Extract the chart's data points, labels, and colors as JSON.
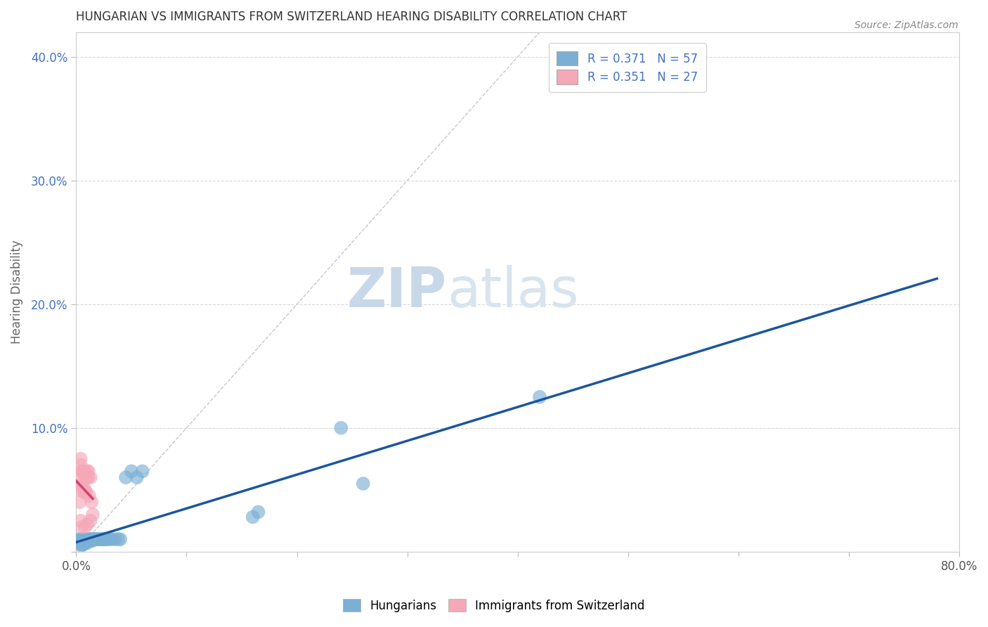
{
  "title": "HUNGARIAN VS IMMIGRANTS FROM SWITZERLAND HEARING DISABILITY CORRELATION CHART",
  "source": "Source: ZipAtlas.com",
  "ylabel": "Hearing Disability",
  "xlabel": "",
  "xlim": [
    0,
    0.8
  ],
  "ylim": [
    0,
    0.42
  ],
  "blue_color": "#7bafd4",
  "pink_color": "#f4a8b8",
  "blue_line_color": "#1a56a0",
  "pink_line_color": "#d94070",
  "diag_color": "#c8c8c8",
  "bg_color": "#ffffff",
  "grid_color": "#d8d8d8",
  "watermark_color": "#dde8f0",
  "hungarian_x": [
    0.002,
    0.003,
    0.004,
    0.004,
    0.005,
    0.005,
    0.006,
    0.006,
    0.006,
    0.007,
    0.007,
    0.007,
    0.008,
    0.008,
    0.008,
    0.009,
    0.009,
    0.01,
    0.01,
    0.01,
    0.011,
    0.011,
    0.012,
    0.012,
    0.013,
    0.013,
    0.014,
    0.014,
    0.015,
    0.015,
    0.016,
    0.017,
    0.018,
    0.019,
    0.02,
    0.021,
    0.022,
    0.023,
    0.024,
    0.025,
    0.026,
    0.027,
    0.028,
    0.03,
    0.032,
    0.035,
    0.038,
    0.04,
    0.045,
    0.05,
    0.055,
    0.06,
    0.16,
    0.165,
    0.24,
    0.26,
    0.42
  ],
  "hungarian_y": [
    0.01,
    0.008,
    0.01,
    0.006,
    0.008,
    0.005,
    0.01,
    0.008,
    0.006,
    0.01,
    0.008,
    0.006,
    0.01,
    0.008,
    0.007,
    0.01,
    0.008,
    0.01,
    0.009,
    0.007,
    0.01,
    0.009,
    0.01,
    0.009,
    0.01,
    0.009,
    0.01,
    0.009,
    0.01,
    0.009,
    0.01,
    0.01,
    0.01,
    0.01,
    0.01,
    0.01,
    0.01,
    0.01,
    0.01,
    0.01,
    0.01,
    0.01,
    0.01,
    0.01,
    0.01,
    0.01,
    0.01,
    0.01,
    0.06,
    0.065,
    0.06,
    0.065,
    0.028,
    0.032,
    0.1,
    0.055,
    0.125
  ],
  "swiss_x": [
    0.002,
    0.003,
    0.003,
    0.004,
    0.004,
    0.004,
    0.005,
    0.005,
    0.005,
    0.006,
    0.006,
    0.007,
    0.007,
    0.008,
    0.008,
    0.008,
    0.009,
    0.009,
    0.01,
    0.01,
    0.011,
    0.011,
    0.012,
    0.013,
    0.013,
    0.014,
    0.015
  ],
  "swiss_y": [
    0.058,
    0.05,
    0.04,
    0.075,
    0.07,
    0.025,
    0.065,
    0.055,
    0.02,
    0.065,
    0.052,
    0.063,
    0.048,
    0.065,
    0.05,
    0.02,
    0.06,
    0.048,
    0.065,
    0.022,
    0.065,
    0.06,
    0.045,
    0.06,
    0.025,
    0.04,
    0.03
  ]
}
